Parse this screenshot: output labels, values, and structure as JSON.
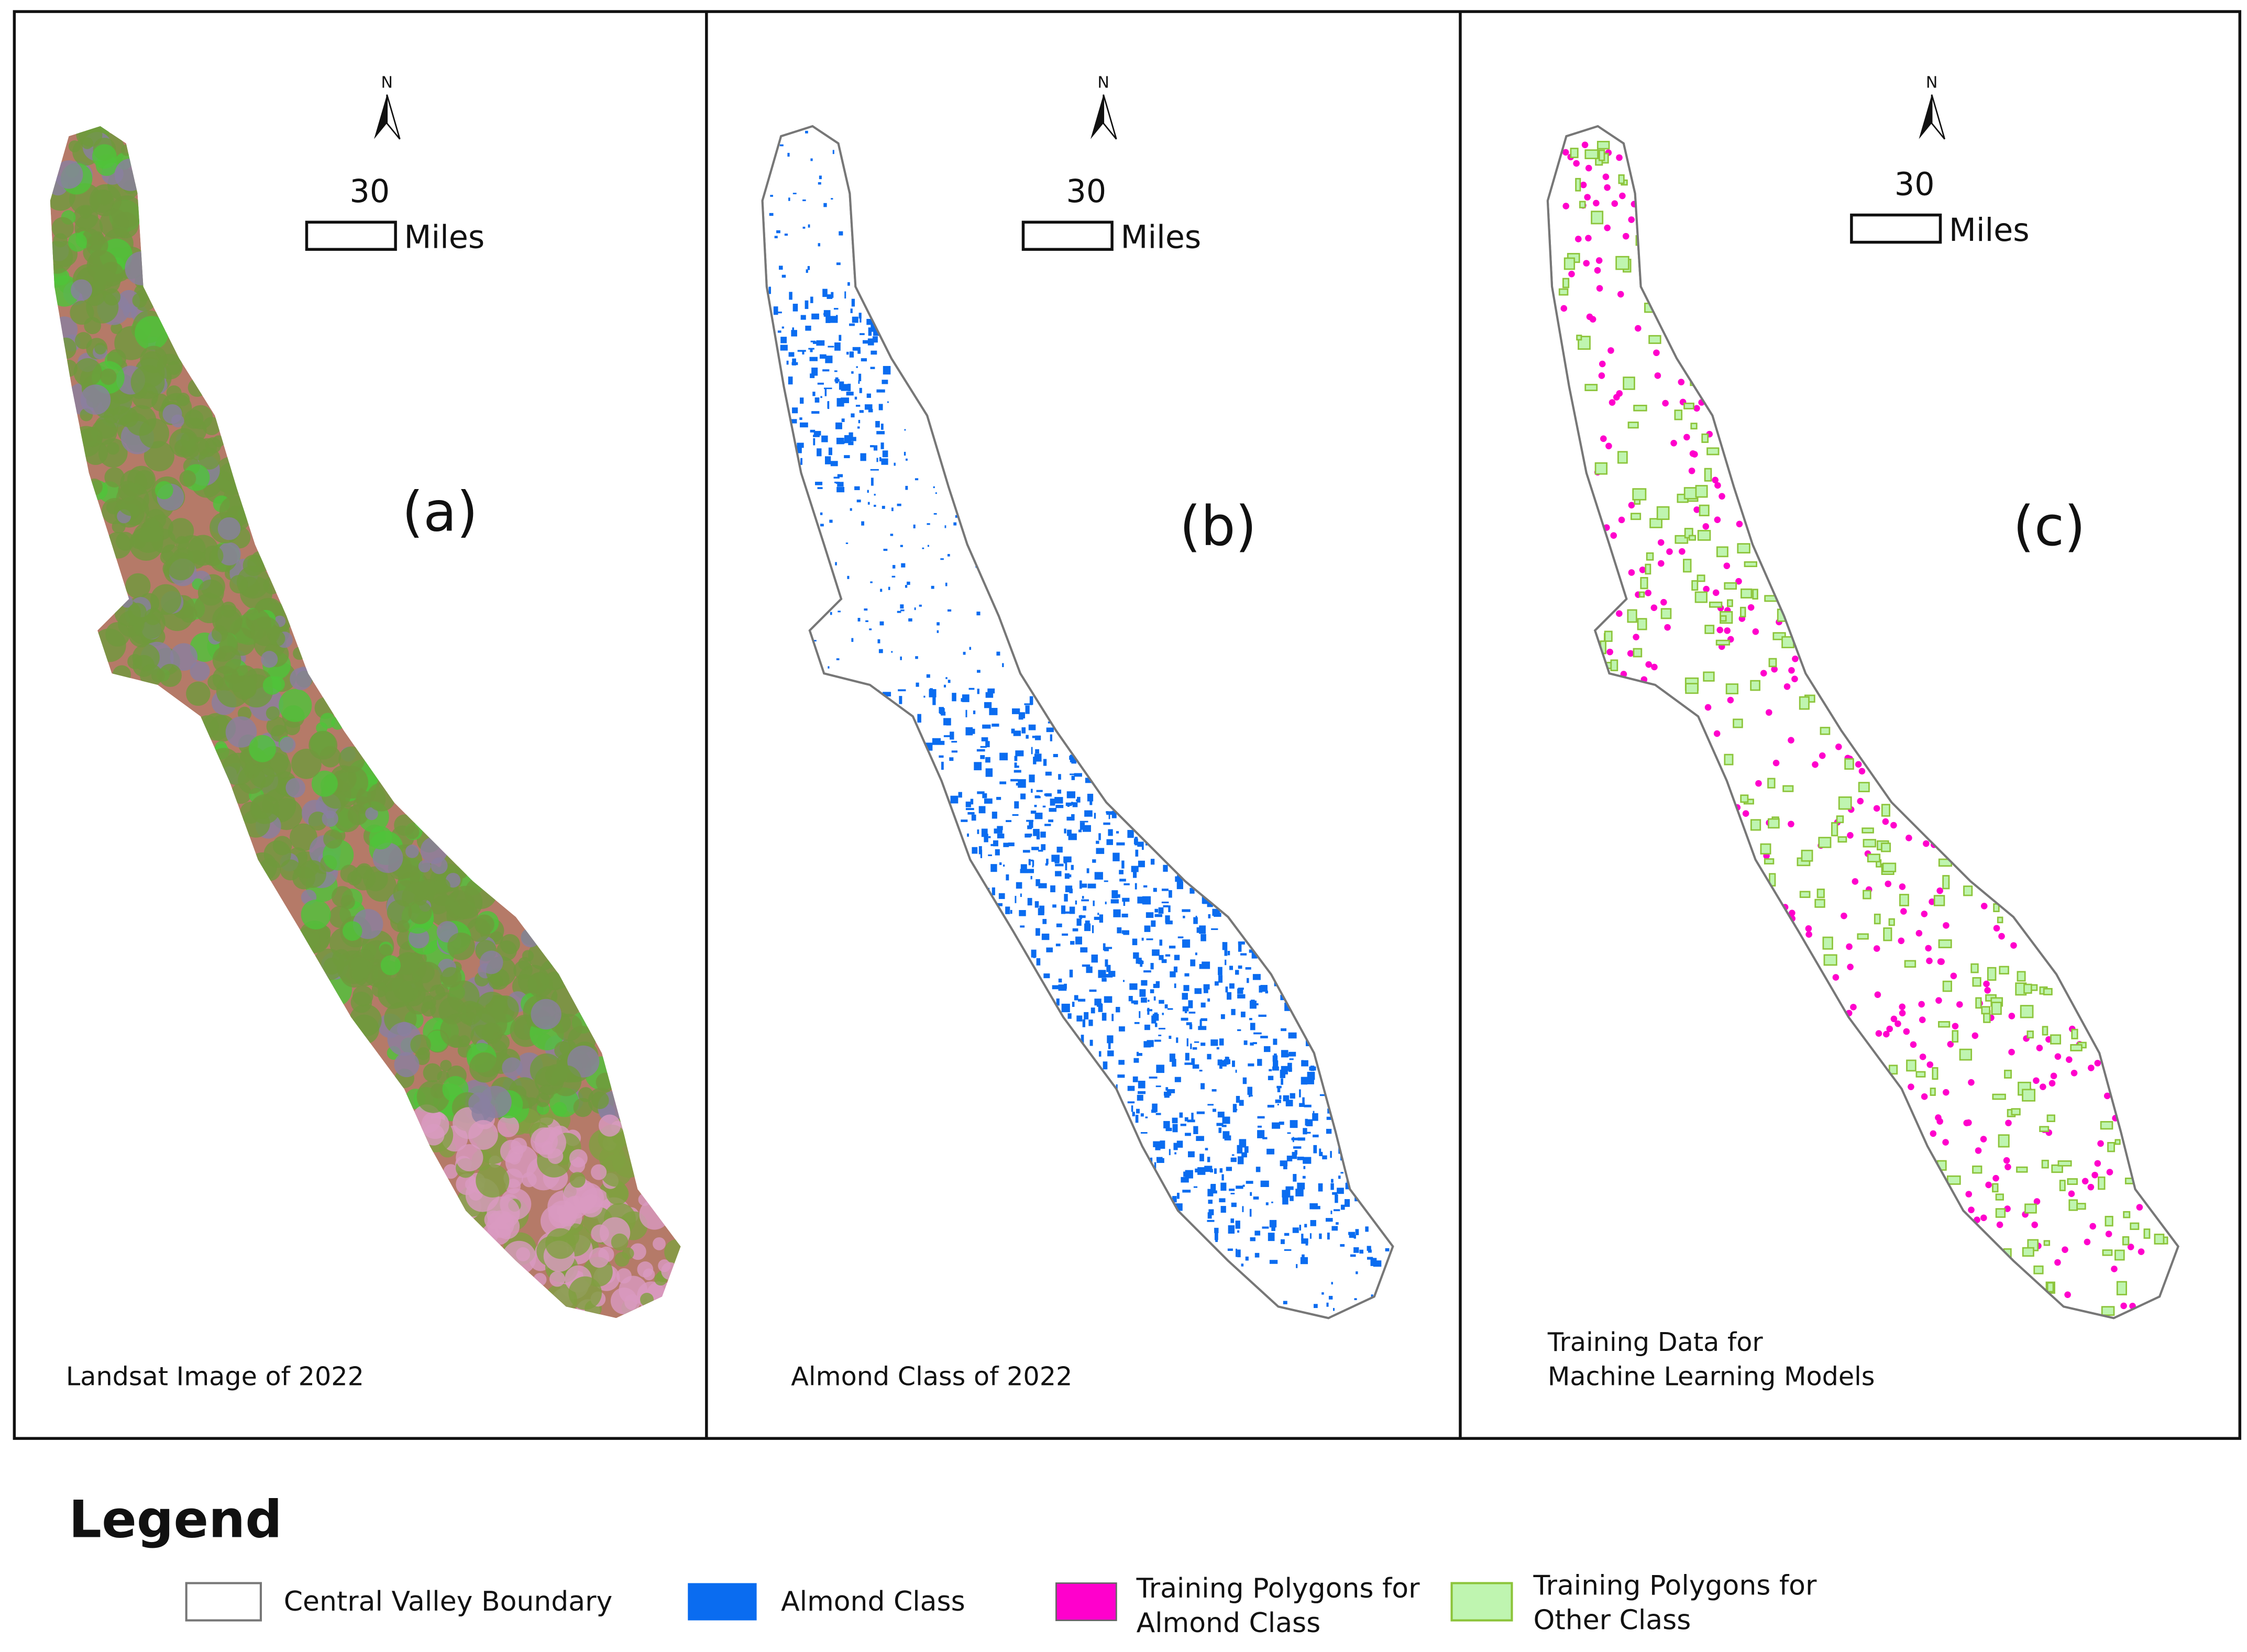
{
  "panels": [
    {
      "label": "(a)",
      "caption": [
        "Landsat Image of 2022"
      ],
      "north": "N",
      "scale_value": 30,
      "scale_unit": "Miles"
    },
    {
      "label": "(b)",
      "caption": [
        "Almond Class of 2022"
      ],
      "north": "N",
      "scale_value": 30,
      "scale_unit": "Miles"
    },
    {
      "label": "(c)",
      "caption": [
        "Training Data for",
        "Machine Learning Models"
      ],
      "north": "N",
      "scale_value": 30,
      "scale_unit": "Miles"
    }
  ],
  "legend": {
    "title": "Legend",
    "items": [
      [
        "Central Valley Boundary"
      ],
      [
        "Almond Class"
      ],
      [
        "Training Polygons for",
        "Almond Class"
      ],
      [
        "Training Polygons for",
        "Other Class"
      ]
    ]
  }
}
